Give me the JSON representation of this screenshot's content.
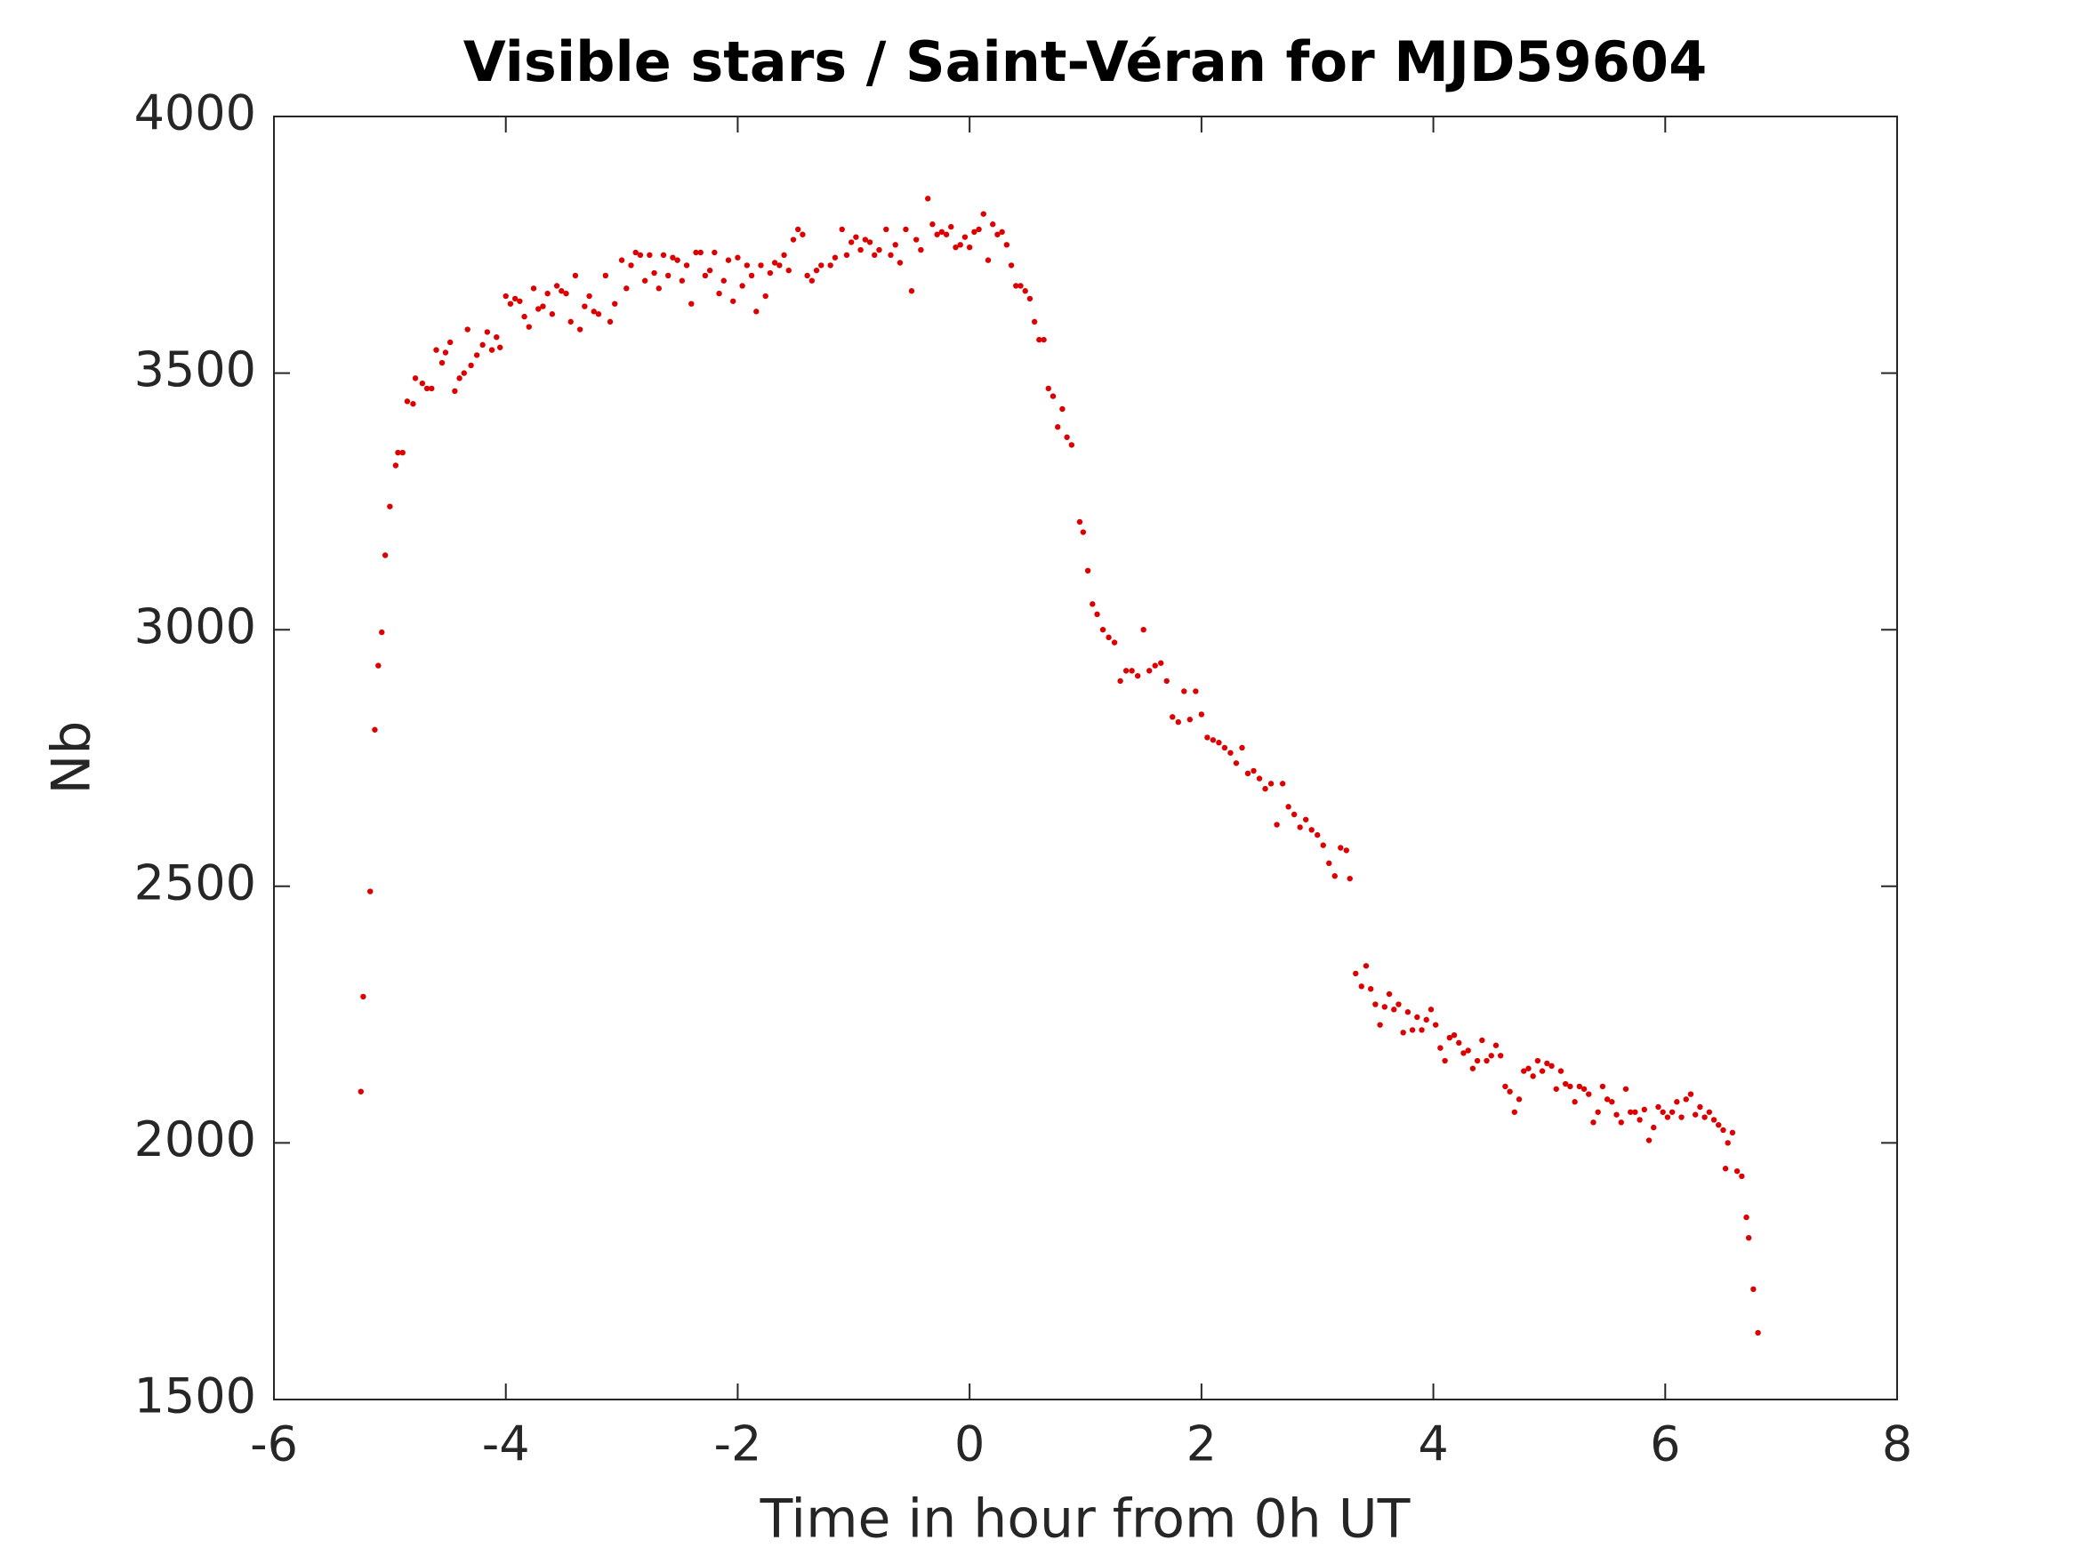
{
  "chart_data": {
    "type": "scatter",
    "title": "Visible stars / Saint-Véran for MJD59604",
    "x_label": "Time in hour from 0h UT",
    "y_label": "Nb",
    "color": "#dd0000",
    "xlim": [
      -6,
      8
    ],
    "xticks": [
      -6,
      -4,
      -2,
      0,
      2,
      4,
      6,
      8
    ],
    "ylim": [
      1500,
      4000
    ],
    "yticks": [
      1500,
      2000,
      2500,
      3000,
      3500,
      4000
    ],
    "x": [
      -5.25,
      -5.23,
      -5.17,
      -5.13,
      -5.1,
      -5.07,
      -5.04,
      -5.0,
      -4.95,
      -4.93,
      -4.89,
      -4.85,
      -4.8,
      -4.78,
      -4.72,
      -4.68,
      -4.64,
      -4.6,
      -4.55,
      -4.52,
      -4.48,
      -4.44,
      -4.4,
      -4.36,
      -4.33,
      -4.3,
      -4.25,
      -4.2,
      -4.16,
      -4.12,
      -4.08,
      -4.05,
      -4.0,
      -3.96,
      -3.92,
      -3.88,
      -3.84,
      -3.8,
      -3.76,
      -3.72,
      -3.68,
      -3.64,
      -3.6,
      -3.56,
      -3.52,
      -3.48,
      -3.44,
      -3.4,
      -3.36,
      -3.32,
      -3.28,
      -3.24,
      -3.2,
      -3.14,
      -3.1,
      -3.06,
      -3.0,
      -2.96,
      -2.92,
      -2.88,
      -2.84,
      -2.8,
      -2.76,
      -2.72,
      -2.68,
      -2.64,
      -2.6,
      -2.56,
      -2.52,
      -2.48,
      -2.44,
      -2.4,
      -2.36,
      -2.32,
      -2.28,
      -2.24,
      -2.2,
      -2.16,
      -2.12,
      -2.08,
      -2.04,
      -2.0,
      -1.96,
      -1.92,
      -1.88,
      -1.84,
      -1.8,
      -1.76,
      -1.72,
      -1.68,
      -1.64,
      -1.6,
      -1.56,
      -1.52,
      -1.48,
      -1.44,
      -1.4,
      -1.36,
      -1.32,
      -1.28,
      -1.2,
      -1.16,
      -1.1,
      -1.06,
      -1.02,
      -0.98,
      -0.94,
      -0.9,
      -0.86,
      -0.82,
      -0.78,
      -0.72,
      -0.68,
      -0.64,
      -0.6,
      -0.55,
      -0.5,
      -0.46,
      -0.42,
      -0.36,
      -0.32,
      -0.28,
      -0.24,
      -0.2,
      -0.16,
      -0.12,
      -0.08,
      -0.04,
      0.0,
      0.04,
      0.08,
      0.12,
      0.16,
      0.2,
      0.24,
      0.28,
      0.32,
      0.36,
      0.4,
      0.44,
      0.48,
      0.52,
      0.56,
      0.6,
      0.64,
      0.68,
      0.72,
      0.76,
      0.8,
      0.84,
      0.88,
      0.95,
      0.98,
      1.02,
      1.06,
      1.1,
      1.15,
      1.2,
      1.25,
      1.3,
      1.35,
      1.4,
      1.45,
      1.5,
      1.55,
      1.6,
      1.65,
      1.7,
      1.75,
      1.8,
      1.85,
      1.9,
      1.95,
      2.0,
      2.05,
      2.1,
      2.15,
      2.2,
      2.25,
      2.3,
      2.35,
      2.4,
      2.45,
      2.5,
      2.55,
      2.6,
      2.65,
      2.7,
      2.75,
      2.8,
      2.85,
      2.9,
      2.95,
      3.0,
      3.05,
      3.1,
      3.15,
      3.2,
      3.25,
      3.28,
      3.33,
      3.38,
      3.42,
      3.46,
      3.5,
      3.54,
      3.58,
      3.62,
      3.66,
      3.7,
      3.74,
      3.78,
      3.82,
      3.86,
      3.9,
      3.94,
      3.98,
      4.02,
      4.06,
      4.1,
      4.14,
      4.18,
      4.22,
      4.26,
      4.3,
      4.34,
      4.38,
      4.42,
      4.46,
      4.5,
      4.54,
      4.58,
      4.62,
      4.66,
      4.7,
      4.74,
      4.78,
      4.82,
      4.86,
      4.9,
      4.94,
      4.98,
      5.02,
      5.06,
      5.1,
      5.14,
      5.18,
      5.22,
      5.26,
      5.3,
      5.34,
      5.38,
      5.42,
      5.46,
      5.5,
      5.54,
      5.58,
      5.62,
      5.66,
      5.7,
      5.74,
      5.78,
      5.82,
      5.86,
      5.9,
      5.94,
      5.98,
      6.02,
      6.06,
      6.1,
      6.14,
      6.18,
      6.22,
      6.26,
      6.3,
      6.34,
      6.38,
      6.42,
      6.46,
      6.5,
      6.54,
      6.58,
      6.52,
      6.62,
      6.66,
      6.7,
      6.72,
      6.76,
      6.8
    ],
    "values": [
      2100,
      2285,
      2490,
      2805,
      2930,
      2995,
      3145,
      3240,
      3320,
      3345,
      3345,
      3445,
      3440,
      3490,
      3480,
      3470,
      3470,
      3545,
      3520,
      3540,
      3560,
      3465,
      3490,
      3500,
      3585,
      3515,
      3535,
      3555,
      3580,
      3545,
      3570,
      3550,
      3650,
      3635,
      3645,
      3640,
      3610,
      3590,
      3665,
      3625,
      3630,
      3655,
      3615,
      3670,
      3660,
      3655,
      3600,
      3690,
      3585,
      3630,
      3650,
      3620,
      3615,
      3690,
      3600,
      3635,
      3720,
      3665,
      3710,
      3735,
      3730,
      3680,
      3730,
      3695,
      3665,
      3730,
      3690,
      3725,
      3720,
      3680,
      3710,
      3635,
      3735,
      3735,
      3690,
      3700,
      3735,
      3655,
      3680,
      3720,
      3640,
      3725,
      3670,
      3710,
      3690,
      3620,
      3710,
      3650,
      3695,
      3715,
      3710,
      3730,
      3700,
      3760,
      3780,
      3770,
      3690,
      3680,
      3700,
      3710,
      3710,
      3725,
      3780,
      3730,
      3755,
      3765,
      3740,
      3760,
      3755,
      3730,
      3740,
      3780,
      3730,
      3750,
      3715,
      3780,
      3660,
      3760,
      3740,
      3840,
      3790,
      3770,
      3775,
      3770,
      3785,
      3745,
      3750,
      3765,
      3745,
      3775,
      3780,
      3810,
      3720,
      3790,
      3770,
      3775,
      3750,
      3710,
      3670,
      3670,
      3660,
      3645,
      3600,
      3565,
      3565,
      3470,
      3455,
      3395,
      3430,
      3375,
      3360,
      3210,
      3190,
      3115,
      3050,
      3030,
      3000,
      2985,
      2975,
      2900,
      2920,
      2920,
      2910,
      3000,
      2920,
      2930,
      2935,
      2900,
      2830,
      2820,
      2880,
      2825,
      2880,
      2835,
      2790,
      2785,
      2780,
      2770,
      2760,
      2740,
      2770,
      2720,
      2725,
      2710,
      2690,
      2700,
      2620,
      2700,
      2655,
      2640,
      2615,
      2630,
      2610,
      2600,
      2580,
      2545,
      2520,
      2575,
      2570,
      2515,
      2330,
      2305,
      2345,
      2300,
      2270,
      2230,
      2265,
      2290,
      2260,
      2270,
      2215,
      2255,
      2220,
      2245,
      2220,
      2240,
      2260,
      2230,
      2185,
      2160,
      2205,
      2210,
      2195,
      2175,
      2180,
      2145,
      2160,
      2200,
      2160,
      2170,
      2190,
      2170,
      2110,
      2100,
      2060,
      2085,
      2140,
      2145,
      2130,
      2160,
      2140,
      2155,
      2150,
      2105,
      2140,
      2115,
      2110,
      2080,
      2110,
      2105,
      2095,
      2040,
      2060,
      2110,
      2085,
      2080,
      2055,
      2040,
      2105,
      2060,
      2060,
      2045,
      2065,
      2005,
      2030,
      2070,
      2060,
      2050,
      2060,
      2080,
      2050,
      2085,
      2095,
      2055,
      2070,
      2050,
      2060,
      2045,
      2035,
      2025,
      2000,
      2020,
      1950,
      1945,
      1935,
      1855,
      1815,
      1715,
      1630
    ]
  }
}
